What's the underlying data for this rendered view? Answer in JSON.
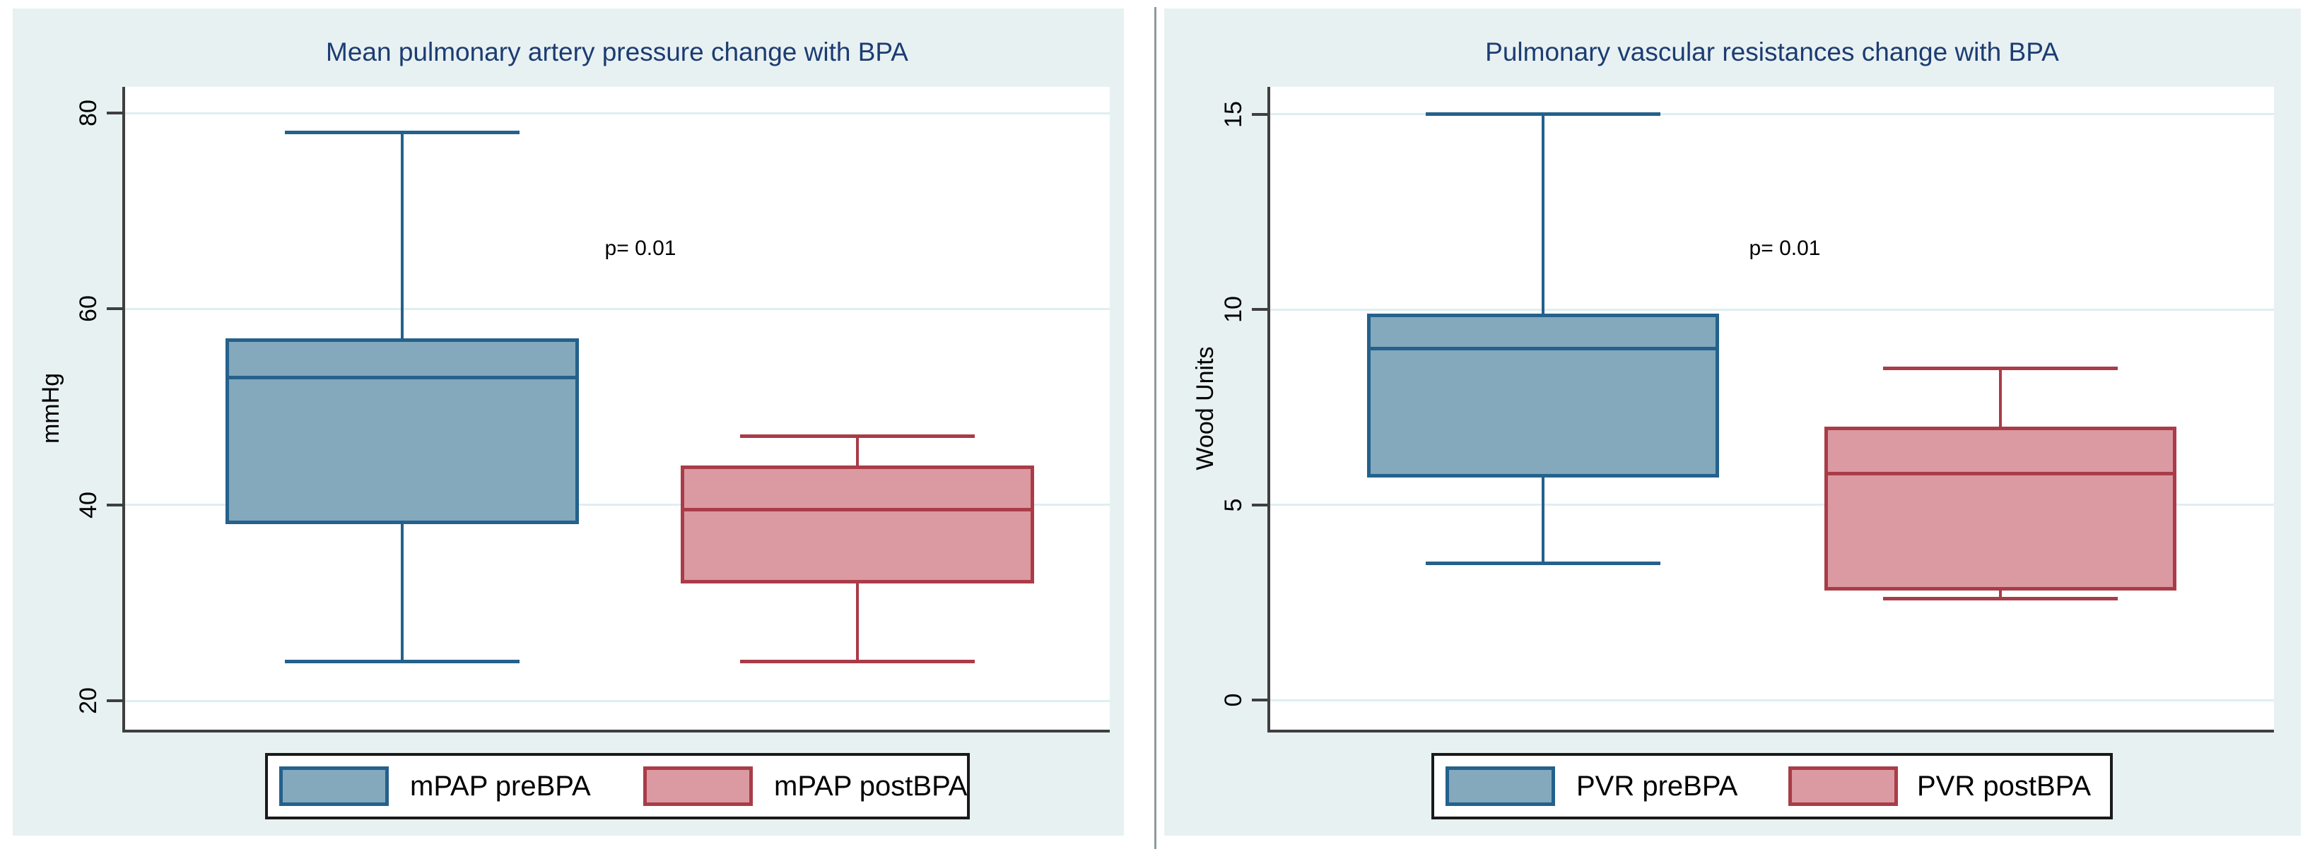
{
  "page": {
    "background": "#ffffff",
    "divider_color": "#8e989b"
  },
  "colors": {
    "background": "#e8f1f2",
    "plot_bg": "#ffffff",
    "grid": "#dfeef0",
    "axis": "#3f3f3f",
    "title": "#1c3c72",
    "text": "#000000",
    "legend_border": "#1a1a1a",
    "pre_fill": "#84a8bc",
    "pre_line": "#24618c",
    "post_fill": "#db9aa1",
    "post_line": "#a93c48"
  },
  "chart_data": [
    {
      "type": "box",
      "title": "Mean pulmonary artery pressure change with BPA",
      "ylabel": "mmHg",
      "yticks": [
        20,
        40,
        60,
        80
      ],
      "ylim": [
        17,
        83
      ],
      "grid": "on",
      "annotation": "p= 0.01",
      "legend_position": "bottom",
      "series": [
        {
          "name": "mPAP preBPA",
          "color_key": "pre",
          "whisker_low": 24,
          "q1": 38,
          "median": 53,
          "q3": 57,
          "whisker_high": 78
        },
        {
          "name": "mPAP postBPA",
          "color_key": "post",
          "whisker_low": 24,
          "q1": 32,
          "median": 39.5,
          "q3": 44,
          "whisker_high": 47
        }
      ],
      "legend": [
        "mPAP preBPA",
        "mPAP postBPA"
      ]
    },
    {
      "type": "box",
      "title": "Pulmonary vascular resistances change with BPA",
      "ylabel": "Wood Units",
      "yticks": [
        0,
        5,
        10,
        15
      ],
      "ylim": [
        -0.8,
        15.8
      ],
      "grid": "on",
      "annotation": "p= 0.01",
      "legend_position": "bottom",
      "series": [
        {
          "name": "PVR preBPA",
          "color_key": "pre",
          "whisker_low": 3.5,
          "q1": 5.7,
          "median": 9,
          "q3": 9.9,
          "whisker_high": 15
        },
        {
          "name": "PVR postBPA",
          "color_key": "post",
          "whisker_low": 2.6,
          "q1": 2.8,
          "median": 5.8,
          "q3": 7,
          "whisker_high": 8.5
        }
      ],
      "legend": [
        "PVR preBPA",
        "PVR postBPA"
      ]
    }
  ]
}
